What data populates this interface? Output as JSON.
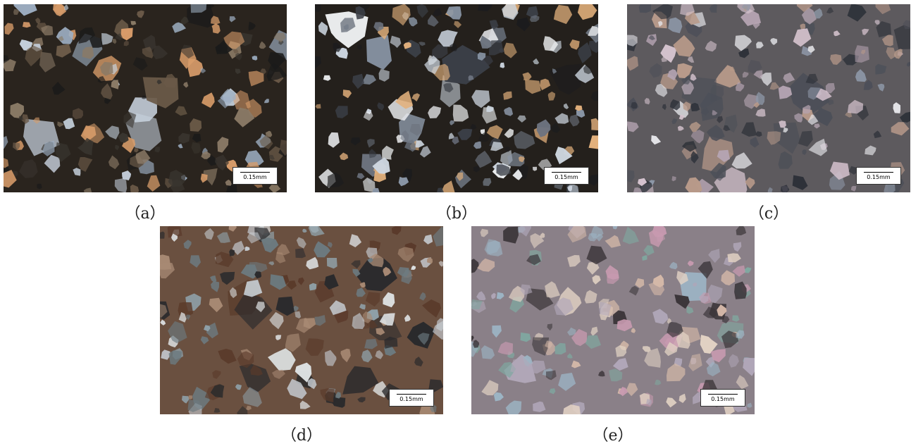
{
  "panels": [
    {
      "label": "（a）",
      "scale_bar": "0.15mm"
    },
    {
      "label": "（b）",
      "scale_bar": "0.15mm"
    },
    {
      "label": "（c）",
      "scale_bar": "0.15mm"
    },
    {
      "label": "（d）",
      "scale_bar": "0.15mm"
    },
    {
      "label": "（e）",
      "scale_bar": "0.15mm"
    }
  ]
}
